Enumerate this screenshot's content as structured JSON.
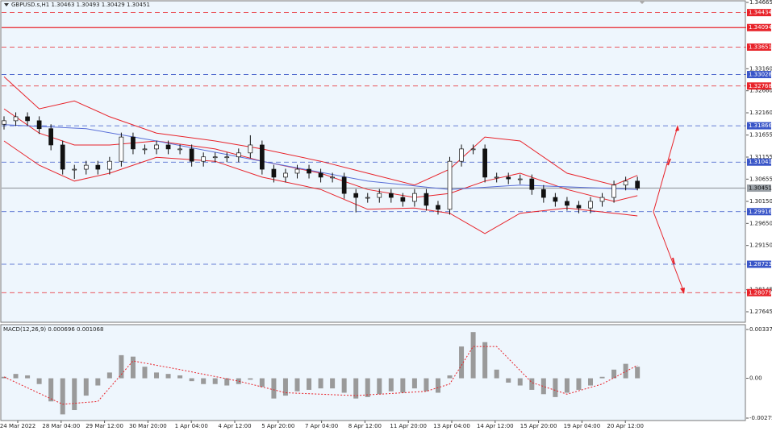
{
  "chart_data": {
    "type": "candlestick",
    "title": "GBPUSD.s,H1  1.30463 1.30493 1.30429 1.30451",
    "ylim": [
      1.27645,
      1.34665
    ],
    "yticks": [
      1.34665,
      {
        "value": 1.3316,
        "label": "1.33160"
      },
      {
        "value": 1.3266,
        "label": "1.32660"
      },
      {
        "value": 1.3216,
        "label": "1.32160"
      },
      1.31655,
      1.31155,
      1.30655,
      {
        "value": 1.3015,
        "label": "1.30150"
      },
      {
        "value": 1.2965,
        "label": "1.29650"
      },
      {
        "value": 1.2915,
        "label": "1.29150"
      },
      1.28145,
      1.27645
    ],
    "candles": {
      "open": [
        1.319,
        1.3198,
        1.3207,
        1.3198,
        1.318,
        1.3143,
        1.3088,
        1.3088,
        1.3097,
        1.3088,
        1.3106,
        1.3161,
        1.3134,
        1.3134,
        1.3143,
        1.3134,
        1.3134,
        1.3106,
        1.3116,
        1.3116,
        1.3116,
        1.3125,
        1.3143,
        1.3088,
        1.307,
        1.3079,
        1.3088,
        1.3079,
        1.307,
        1.307,
        1.3033,
        1.3024,
        1.3024,
        1.3033,
        1.3024,
        1.3015,
        1.3033,
        1.3006,
        1.2997,
        1.3106,
        1.3134,
        1.3134,
        1.307,
        1.307,
        1.3066,
        1.3066,
        1.3042,
        1.3024,
        1.3015,
        1.3006,
        1.3,
        1.3015,
        1.3024,
        1.3052,
        1.3061
      ],
      "high": [
        1.3208,
        1.3217,
        1.3217,
        1.3208,
        1.319,
        1.3153,
        1.3098,
        1.3107,
        1.3107,
        1.3116,
        1.3171,
        1.3171,
        1.3144,
        1.3153,
        1.3153,
        1.3144,
        1.3144,
        1.3126,
        1.3126,
        1.3126,
        1.3135,
        1.3165,
        1.3153,
        1.3098,
        1.3089,
        1.3098,
        1.3098,
        1.3089,
        1.308,
        1.308,
        1.3043,
        1.3034,
        1.3043,
        1.3043,
        1.3034,
        1.3043,
        1.3043,
        1.3016,
        1.3116,
        1.3144,
        1.3144,
        1.3144,
        1.308,
        1.308,
        1.3076,
        1.3076,
        1.3052,
        1.3034,
        1.3025,
        1.3016,
        1.3025,
        1.3034,
        1.3062,
        1.3071,
        1.3071
      ],
      "low": [
        1.3178,
        1.3186,
        1.3186,
        1.3168,
        1.3131,
        1.3076,
        1.3066,
        1.3076,
        1.3076,
        1.3076,
        1.3094,
        1.3122,
        1.3122,
        1.3122,
        1.3122,
        1.3122,
        1.3094,
        1.3094,
        1.3104,
        1.3104,
        1.3104,
        1.3113,
        1.3076,
        1.3058,
        1.3058,
        1.3067,
        1.3067,
        1.3058,
        1.3058,
        1.3021,
        1.299,
        1.3012,
        1.3012,
        1.3012,
        1.3003,
        1.3003,
        1.2994,
        1.2985,
        1.2985,
        1.3094,
        1.3122,
        1.3058,
        1.3058,
        1.3054,
        1.3054,
        1.303,
        1.3012,
        1.3003,
        1.2994,
        1.2988,
        1.2988,
        1.3003,
        1.3012,
        1.304,
        1.304
      ],
      "close": [
        1.3198,
        1.3207,
        1.3198,
        1.318,
        1.3143,
        1.3088,
        1.3088,
        1.3097,
        1.3088,
        1.3106,
        1.3161,
        1.3134,
        1.3134,
        1.3143,
        1.3134,
        1.3134,
        1.3106,
        1.3116,
        1.3116,
        1.3116,
        1.3125,
        1.3143,
        1.3088,
        1.307,
        1.3079,
        1.3088,
        1.3079,
        1.307,
        1.307,
        1.3033,
        1.3024,
        1.3024,
        1.3033,
        1.3024,
        1.3015,
        1.3033,
        1.3006,
        1.2997,
        1.3106,
        1.3134,
        1.3134,
        1.307,
        1.307,
        1.3066,
        1.3066,
        1.3042,
        1.3024,
        1.3015,
        1.3006,
        1.3,
        1.3015,
        1.3024,
        1.3052,
        1.3061,
        1.3045
      ]
    },
    "indicators": [
      {
        "color": "#e8232a",
        "x": [
          0,
          3,
          6,
          9,
          13,
          18,
          22,
          27,
          31,
          35,
          38,
          41,
          44,
          48,
          52,
          54
        ],
        "values": [
          1.3298,
          1.3225,
          1.3243,
          1.3207,
          1.317,
          1.3152,
          1.3134,
          1.3106,
          1.3079,
          1.3052,
          1.3088,
          1.3161,
          1.3152,
          1.3079,
          1.3052,
          1.3074
        ]
      },
      {
        "color": "#e8232a",
        "x": [
          0,
          3,
          6,
          9,
          13,
          18,
          22,
          27,
          31,
          35,
          38,
          41,
          44,
          48,
          52,
          54
        ],
        "values": [
          1.3225,
          1.317,
          1.3143,
          1.3143,
          1.3152,
          1.3134,
          1.3106,
          1.3079,
          1.3042,
          1.3024,
          1.3033,
          1.3061,
          1.3079,
          1.3042,
          1.3015,
          1.3028
        ]
      },
      {
        "color": "#e8232a",
        "x": [
          0,
          3,
          6,
          9,
          13,
          18,
          22,
          27,
          31,
          35,
          38,
          41,
          44,
          48,
          52,
          54
        ],
        "values": [
          1.3152,
          1.3097,
          1.3061,
          1.3079,
          1.3115,
          1.3106,
          1.307,
          1.3042,
          1.2997,
          1.3,
          1.2988,
          1.2942,
          1.2988,
          1.3,
          1.2988,
          1.2982
        ]
      },
      {
        "color": "#5a6fd8",
        "x": [
          0,
          7,
          13,
          22,
          31,
          38,
          44,
          54
        ],
        "values": [
          1.3189,
          1.318,
          1.3152,
          1.3106,
          1.3061,
          1.3042,
          1.3052,
          1.3042
        ]
      }
    ],
    "levels": [
      {
        "value": 1.34434,
        "color": "#e8232a",
        "dash": true
      },
      {
        "value": 1.34094,
        "color": "#e8232a",
        "dash": false
      },
      {
        "value": 1.33651,
        "color": "#e8232a",
        "dash": true
      },
      {
        "value": 1.33028,
        "color": "#3a56c8",
        "dash": true
      },
      {
        "value": 1.32768,
        "color": "#e8232a",
        "dash": true
      },
      {
        "value": 1.31866,
        "color": "#3a56c8",
        "dash": true
      },
      {
        "value": 1.31041,
        "color": "#3a56c8",
        "dash": true
      },
      {
        "value": 1.30451,
        "color": "#9aa0a6",
        "dash": false
      },
      {
        "value": 1.29916,
        "color": "#3a56c8",
        "dash": true
      },
      {
        "value": 1.28723,
        "color": "#3a56c8",
        "dash": true
      },
      {
        "value": 1.28079,
        "color": "#e8232a",
        "dash": true
      }
    ],
    "xlabels": [
      "24 Mar 2022",
      "28 Mar 04:00",
      "29 Mar 12:00",
      "30 Mar 20:00",
      "1 Apr 04:00",
      "4 Apr 12:00",
      "5 Apr 20:00",
      "7 Apr 04:00",
      "8 Apr 12:00",
      "11 Apr 20:00",
      "13 Apr 04:00",
      "14 Apr 12:00",
      "15 Apr 20:00",
      "19 Apr 04:00",
      "20 Apr 12:00"
    ],
    "macd": {
      "label": "MACD(12,26,9) 0.000696 0.001068",
      "ylim": [
        -0.002757,
        0.003377
      ],
      "yticks": [
        0.003377,
        {
          "value": 0,
          "label": "0.00"
        },
        -0.002757
      ],
      "color": "#9a9a9a",
      "values": [
        0.0001,
        0.0003,
        0.0002,
        -0.0004,
        -0.0016,
        -0.0025,
        -0.0022,
        -0.0012,
        -0.0005,
        0.0004,
        0.0016,
        0.0015,
        0.0008,
        0.0004,
        0.0003,
        0.0002,
        -0.0002,
        -0.0004,
        -0.0004,
        -0.0005,
        -0.0004,
        -0.0001,
        -0.0006,
        -0.0014,
        -0.0012,
        -0.0009,
        -0.0008,
        -0.0007,
        -0.0007,
        -0.001,
        -0.0014,
        -0.0013,
        -0.0011,
        -0.0009,
        -0.001,
        -0.0007,
        -0.0009,
        -0.001,
        0.0002,
        0.0022,
        0.0032,
        0.0025,
        0.0006,
        -0.0003,
        -0.0005,
        -0.0008,
        -0.0011,
        -0.0013,
        -0.001,
        -0.0008,
        -0.0005,
        0.0001,
        0.0006,
        0.001,
        0.0008
      ],
      "signal": {
        "color": "#e8232a",
        "x": [
          0,
          5,
          8,
          11,
          15,
          20,
          24,
          30,
          36,
          38,
          40,
          42,
          45,
          48,
          51,
          54
        ],
        "values": [
          0.0001,
          -0.0018,
          -0.0016,
          0.0012,
          0.0006,
          -0.0002,
          -0.001,
          -0.0012,
          -0.0009,
          -0.0004,
          0.0022,
          0.0022,
          -0.0003,
          -0.0011,
          -0.0004,
          0.0009
        ]
      }
    }
  }
}
